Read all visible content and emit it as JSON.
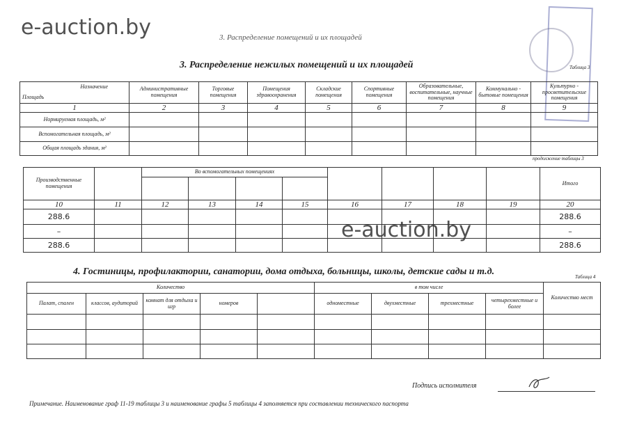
{
  "watermark": "e-auction.by",
  "header_faint": "3. Распределение помещений и их площадей",
  "section3": {
    "title": "3. Распределение нежилых помещений и их площадей",
    "table_label": "Таблица 3",
    "corner_top": "Назначение",
    "corner_bottom": "Площадь",
    "columns": [
      "Административные помещения",
      "Торговые помещения",
      "Помещения здравоохранения",
      "Складские помещения",
      "Спортивные помещения",
      "Образовательные, воспитательные, научные помещения",
      "Коммунально - бытовые помещения",
      "Культурно - просветительские помещения"
    ],
    "numbers": [
      "1",
      "2",
      "3",
      "4",
      "5",
      "6",
      "7",
      "8",
      "9"
    ],
    "rows": [
      "Нормируемая площадь, м²",
      "Вспомогательная площадь, м²",
      "Общая площадь здания, м²"
    ]
  },
  "continuation": {
    "label": "продолжение таблицы 3",
    "col_production": "Производственные помещения",
    "col_aux": "Во вспомогательных помещениях",
    "col_total": "Итого",
    "numbers": [
      "10",
      "11",
      "12",
      "13",
      "14",
      "15",
      "16",
      "17",
      "18",
      "19",
      "20"
    ],
    "col10": [
      "288.6",
      "–",
      "288.6"
    ],
    "col20": [
      "288.6",
      "–",
      "288.6"
    ]
  },
  "section4": {
    "title": "4. Гостиницы, профилактории, санатории, дома отдыха, больницы, школы, детские сады и т.д.",
    "table_label": "Таблица 4",
    "group_count": "Количество",
    "group_incl": "в том числе",
    "places": "Количество мест",
    "columns": [
      "Палат, спален",
      "классов, аудиторий",
      "комнат для отдыха и игр",
      "номеров",
      "",
      "одноместные",
      "двухместные",
      "трехместные",
      "четырехместные и более"
    ]
  },
  "signature_label": "Подпись исполнителя",
  "note": "Примечание. Наименование граф 11-19 таблицы 3 и наименование графы 5 таблицы 4 заполняется при составлении технического паспорта"
}
